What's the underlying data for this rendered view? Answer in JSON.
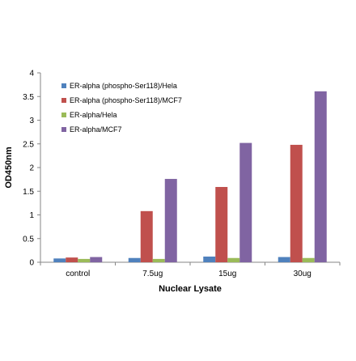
{
  "chart_data": {
    "type": "bar",
    "categories": [
      "control",
      "7.5ug",
      "15ug",
      "30ug"
    ],
    "series": [
      {
        "name": "ER-alpha (phospho-Ser118)/Hela",
        "values": [
          0.08,
          0.09,
          0.12,
          0.11
        ],
        "color": "#4F81BD"
      },
      {
        "name": "ER-alpha (phospho-Ser118)/MCF7",
        "values": [
          0.1,
          1.08,
          1.59,
          2.48
        ],
        "color": "#C0504D"
      },
      {
        "name": "ER-alpha/Hela",
        "values": [
          0.07,
          0.07,
          0.09,
          0.09
        ],
        "color": "#9BBB59"
      },
      {
        "name": "ER-alpha/MCF7",
        "values": [
          0.11,
          1.76,
          2.52,
          3.61
        ],
        "color": "#8064A2"
      }
    ],
    "title": "",
    "xlabel": "Nuclear Lysate",
    "ylabel": "OD450nm",
    "ylim": [
      0,
      4
    ],
    "yticks": [
      "0",
      "0.5",
      "1",
      "1.5",
      "2",
      "2.5",
      "3",
      "3.5",
      "4"
    ],
    "grid": false,
    "legend": "top-left"
  }
}
